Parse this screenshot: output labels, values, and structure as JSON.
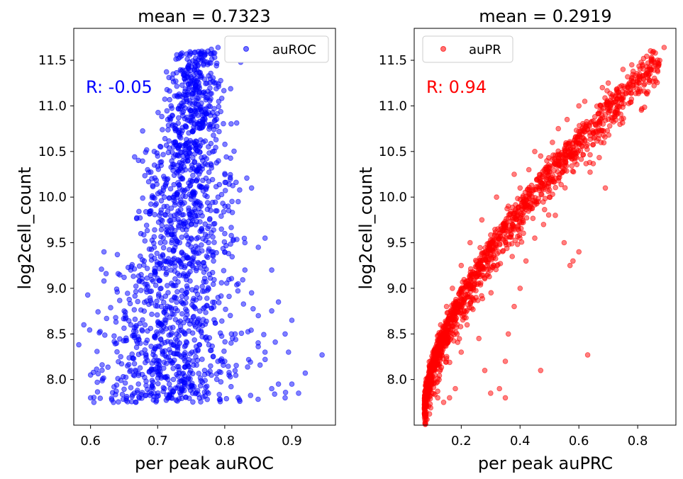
{
  "chart_data": [
    {
      "type": "scatter",
      "title": "mean = 0.7323",
      "xlabel": "per peak auROC",
      "ylabel": "log2cell_count",
      "xlim": [
        0.575,
        0.965
      ],
      "ylim": [
        7.5,
        11.85
      ],
      "xticks": [
        0.6,
        0.7,
        0.8,
        0.9
      ],
      "xtick_labels": [
        "0.6",
        "0.7",
        "0.8",
        "0.9"
      ],
      "yticks": [
        8.0,
        8.5,
        9.0,
        9.5,
        10.0,
        10.5,
        11.0,
        11.5
      ],
      "ytick_labels": [
        "8.0",
        "8.5",
        "9.0",
        "9.5",
        "10.0",
        "10.5",
        "11.0",
        "11.5"
      ],
      "annotation": "R: -0.05",
      "color": "#0000ff",
      "legend": {
        "label": "auROC",
        "placement": "upper right"
      },
      "grid": false,
      "series": [
        {
          "name": "auROC",
          "points": [
            [
              0.59,
              8.6
            ],
            [
              0.6,
              8.05
            ],
            [
              0.6,
              7.8
            ],
            [
              0.605,
              7.75
            ],
            [
              0.61,
              7.97
            ],
            [
              0.62,
              9.08
            ],
            [
              0.62,
              9.4
            ],
            [
              0.635,
              7.92
            ],
            [
              0.64,
              9.37
            ],
            [
              0.645,
              8.25
            ],
            [
              0.65,
              9.12
            ],
            [
              0.655,
              8.15
            ],
            [
              0.66,
              9.2
            ],
            [
              0.66,
              8.6
            ],
            [
              0.665,
              7.85
            ],
            [
              0.67,
              8.4
            ],
            [
              0.68,
              9.3
            ],
            [
              0.685,
              10.3
            ],
            [
              0.69,
              9.85
            ],
            [
              0.695,
              10.5
            ],
            [
              0.7,
              10.45
            ],
            [
              0.705,
              9.0
            ],
            [
              0.71,
              10.0
            ],
            [
              0.72,
              11.0
            ],
            [
              0.725,
              10.6
            ],
            [
              0.73,
              11.1
            ],
            [
              0.735,
              10.2
            ],
            [
              0.74,
              11.3
            ],
            [
              0.745,
              11.15
            ],
            [
              0.75,
              11.3
            ],
            [
              0.755,
              11.4
            ],
            [
              0.76,
              11.45
            ],
            [
              0.765,
              11.5
            ],
            [
              0.77,
              11.55
            ],
            [
              0.775,
              11.6
            ],
            [
              0.78,
              11.62
            ],
            [
              0.785,
              11.58
            ],
            [
              0.79,
              11.64
            ],
            [
              0.76,
              9.95
            ],
            [
              0.78,
              10.35
            ],
            [
              0.79,
              10.0
            ],
            [
              0.8,
              9.6
            ],
            [
              0.805,
              9.9
            ],
            [
              0.82,
              9.95
            ],
            [
              0.83,
              9.5
            ],
            [
              0.84,
              10.1
            ],
            [
              0.85,
              9.45
            ],
            [
              0.86,
              9.55
            ],
            [
              0.87,
              9.2
            ],
            [
              0.88,
              8.85
            ],
            [
              0.89,
              8.5
            ],
            [
              0.895,
              8.3
            ],
            [
              0.9,
              7.95
            ],
            [
              0.91,
              7.85
            ],
            [
              0.92,
              8.07
            ],
            [
              0.945,
              8.27
            ],
            [
              0.9,
              8.65
            ],
            [
              0.86,
              8.3
            ],
            [
              0.87,
              7.9
            ],
            [
              0.88,
              7.95
            ],
            [
              0.89,
              7.8
            ],
            [
              0.85,
              8.7
            ],
            [
              0.84,
              8.95
            ],
            [
              0.83,
              9.2
            ],
            [
              0.82,
              9.05
            ],
            [
              0.81,
              8.5
            ],
            [
              0.8,
              8.2
            ],
            [
              0.79,
              8.9
            ],
            [
              0.78,
              9.4
            ],
            [
              0.77,
              8.1
            ],
            [
              0.76,
              8.65
            ],
            [
              0.75,
              9.7
            ],
            [
              0.74,
              8.0
            ],
            [
              0.73,
              8.35
            ],
            [
              0.72,
              9.2
            ],
            [
              0.71,
              7.9
            ],
            [
              0.7,
              8.5
            ],
            [
              0.69,
              8.1
            ],
            [
              0.68,
              8.75
            ],
            [
              0.675,
              9.6
            ],
            [
              0.695,
              9.45
            ],
            [
              0.705,
              9.75
            ],
            [
              0.715,
              10.2
            ],
            [
              0.725,
              9.8
            ],
            [
              0.735,
              10.7
            ],
            [
              0.745,
              10.4
            ],
            [
              0.755,
              10.8
            ],
            [
              0.765,
              10.95
            ],
            [
              0.715,
              10.85
            ],
            [
              0.73,
              10.05
            ]
          ]
        }
      ]
    },
    {
      "type": "scatter",
      "title": "mean = 0.2919",
      "xlabel": "per peak auPRC",
      "ylabel": "log2cell_count",
      "xlim": [
        0.04,
        0.93
      ],
      "ylim": [
        7.5,
        11.85
      ],
      "xticks": [
        0.2,
        0.4,
        0.6,
        0.8
      ],
      "xtick_labels": [
        "0.2",
        "0.4",
        "0.6",
        "0.8"
      ],
      "yticks": [
        8.0,
        8.5,
        9.0,
        9.5,
        10.0,
        10.5,
        11.0,
        11.5
      ],
      "ytick_labels": [
        "8.0",
        "8.5",
        "9.0",
        "9.5",
        "10.0",
        "10.5",
        "11.0",
        "11.5"
      ],
      "annotation": "R: 0.94",
      "color": "#ff0000",
      "legend": {
        "label": "auPR",
        "placement": "upper left"
      },
      "grid": false,
      "series": [
        {
          "name": "auPR",
          "points": [
            [
              0.08,
              7.8
            ],
            [
              0.09,
              7.9
            ],
            [
              0.1,
              8.0
            ],
            [
              0.11,
              8.2
            ],
            [
              0.12,
              8.4
            ],
            [
              0.13,
              8.6
            ],
            [
              0.15,
              8.8
            ],
            [
              0.17,
              9.0
            ],
            [
              0.2,
              9.25
            ],
            [
              0.23,
              9.5
            ],
            [
              0.27,
              9.75
            ],
            [
              0.32,
              10.0
            ],
            [
              0.38,
              10.25
            ],
            [
              0.45,
              10.5
            ],
            [
              0.53,
              10.75
            ],
            [
              0.6,
              11.0
            ],
            [
              0.68,
              11.2
            ],
            [
              0.75,
              11.4
            ],
            [
              0.82,
              11.52
            ],
            [
              0.86,
              11.58
            ],
            [
              0.89,
              11.64
            ],
            [
              0.69,
              10.1
            ],
            [
              0.63,
              8.27
            ],
            [
              0.6,
              9.4
            ],
            [
              0.58,
              9.3
            ],
            [
              0.57,
              9.25
            ],
            [
              0.55,
              9.5
            ],
            [
              0.52,
              9.8
            ],
            [
              0.5,
              10.0
            ],
            [
              0.48,
              9.7
            ],
            [
              0.45,
              9.55
            ],
            [
              0.42,
              9.3
            ],
            [
              0.4,
              9.0
            ],
            [
              0.38,
              8.8
            ],
            [
              0.36,
              8.5
            ],
            [
              0.35,
              8.2
            ],
            [
              0.33,
              7.9
            ],
            [
              0.3,
              7.85
            ],
            [
              0.28,
              8.1
            ],
            [
              0.26,
              8.45
            ],
            [
              0.25,
              8.9
            ],
            [
              0.22,
              8.6
            ],
            [
              0.2,
              8.3
            ],
            [
              0.18,
              7.9
            ],
            [
              0.16,
              7.8
            ],
            [
              0.14,
              7.75
            ],
            [
              0.12,
              7.8
            ],
            [
              0.35,
              7.8
            ],
            [
              0.47,
              8.1
            ],
            [
              0.3,
              9.2
            ],
            [
              0.33,
              9.6
            ],
            [
              0.36,
              9.9
            ],
            [
              0.4,
              10.1
            ],
            [
              0.43,
              10.3
            ],
            [
              0.47,
              10.45
            ],
            [
              0.51,
              10.6
            ],
            [
              0.56,
              10.85
            ],
            [
              0.62,
              11.05
            ],
            [
              0.7,
              11.25
            ],
            [
              0.78,
              11.45
            ]
          ]
        }
      ]
    }
  ]
}
